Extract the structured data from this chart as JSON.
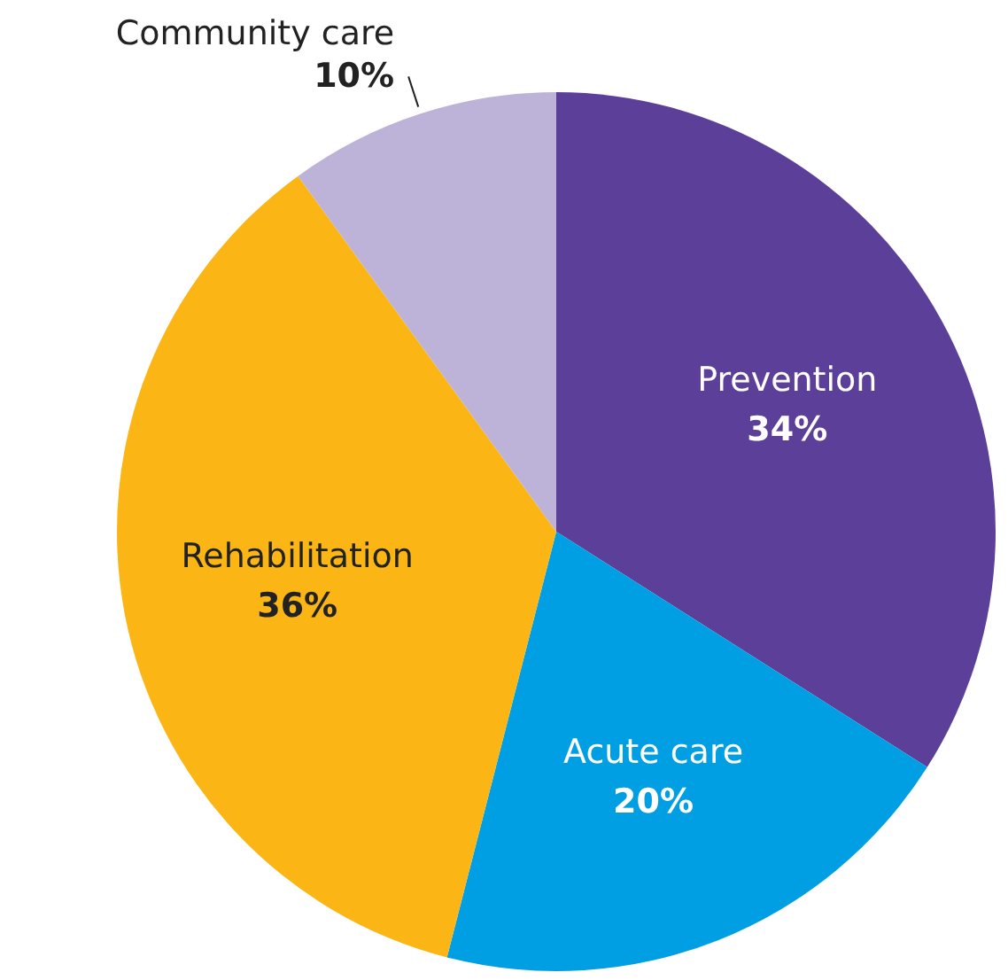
{
  "chart_data": {
    "type": "pie",
    "categories": [
      "Prevention",
      "Acute care",
      "Rehabilitation",
      "Community care"
    ],
    "values": [
      34,
      20,
      36,
      10
    ],
    "colors": [
      "#5b3f99",
      "#009fe3",
      "#fbb615",
      "#bdb3d9"
    ],
    "value_labels": [
      "34%",
      "20%",
      "36%",
      "10%"
    ]
  }
}
